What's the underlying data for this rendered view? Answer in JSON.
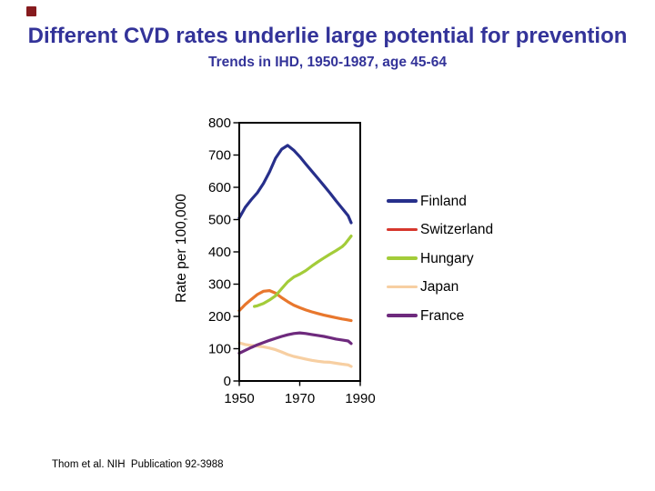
{
  "slide": {
    "title": "Different CVD rates underlie large potential for prevention",
    "subtitle": "Trends in IHD, 1950-1987, age 45-64",
    "footer": "Thom et al. NIH  Publication 92-3988",
    "title_color": "#333399",
    "subtitle_color": "#333399",
    "accent_square_color": "#861b1e"
  },
  "chart_data": {
    "type": "line",
    "title": "",
    "xlabel": "",
    "ylabel": "Rate per 100,000",
    "xlim": [
      1950,
      1990
    ],
    "ylim": [
      0,
      800
    ],
    "xticks": [
      1950,
      1970,
      1990
    ],
    "yticks": [
      0,
      100,
      200,
      300,
      400,
      500,
      600,
      700,
      800
    ],
    "grid": false,
    "legend_position": "right",
    "axis_color": "#000000",
    "series": [
      {
        "name": "Finland",
        "color": "#272f8b",
        "legend_color": "#272f8b",
        "points": [
          [
            1950,
            505
          ],
          [
            1952,
            538
          ],
          [
            1954,
            562
          ],
          [
            1956,
            583
          ],
          [
            1958,
            612
          ],
          [
            1960,
            648
          ],
          [
            1962,
            690
          ],
          [
            1964,
            718
          ],
          [
            1966,
            730
          ],
          [
            1968,
            715
          ],
          [
            1970,
            695
          ],
          [
            1972,
            672
          ],
          [
            1974,
            650
          ],
          [
            1976,
            628
          ],
          [
            1978,
            605
          ],
          [
            1980,
            582
          ],
          [
            1982,
            558
          ],
          [
            1984,
            535
          ],
          [
            1986,
            512
          ],
          [
            1987,
            490
          ]
        ]
      },
      {
        "name": "Switzerland",
        "color": "#e8772d",
        "legend_color": "#d6372d",
        "points": [
          [
            1950,
            218
          ],
          [
            1952,
            237
          ],
          [
            1954,
            253
          ],
          [
            1956,
            268
          ],
          [
            1958,
            278
          ],
          [
            1960,
            280
          ],
          [
            1962,
            272
          ],
          [
            1964,
            258
          ],
          [
            1966,
            246
          ],
          [
            1968,
            235
          ],
          [
            1970,
            227
          ],
          [
            1972,
            220
          ],
          [
            1974,
            214
          ],
          [
            1976,
            209
          ],
          [
            1978,
            204
          ],
          [
            1980,
            200
          ],
          [
            1982,
            196
          ],
          [
            1984,
            192
          ],
          [
            1986,
            189
          ],
          [
            1987,
            187
          ]
        ]
      },
      {
        "name": "Hungary",
        "color": "#a3cc39",
        "legend_color": "#a3cc39",
        "points": [
          [
            1955,
            231
          ],
          [
            1956,
            233
          ],
          [
            1958,
            240
          ],
          [
            1960,
            251
          ],
          [
            1962,
            264
          ],
          [
            1964,
            286
          ],
          [
            1966,
            307
          ],
          [
            1968,
            322
          ],
          [
            1970,
            331
          ],
          [
            1972,
            342
          ],
          [
            1974,
            356
          ],
          [
            1976,
            369
          ],
          [
            1978,
            381
          ],
          [
            1980,
            393
          ],
          [
            1982,
            404
          ],
          [
            1984,
            416
          ],
          [
            1985,
            425
          ],
          [
            1986,
            437
          ],
          [
            1987,
            449
          ]
        ]
      },
      {
        "name": "Japan",
        "color": "#f7cfa2",
        "legend_color": "#f7cfa2",
        "points": [
          [
            1950,
            118
          ],
          [
            1952,
            113
          ],
          [
            1954,
            110
          ],
          [
            1956,
            108
          ],
          [
            1958,
            106
          ],
          [
            1960,
            102
          ],
          [
            1962,
            97
          ],
          [
            1964,
            90
          ],
          [
            1966,
            82
          ],
          [
            1968,
            76
          ],
          [
            1970,
            72
          ],
          [
            1972,
            68
          ],
          [
            1974,
            64
          ],
          [
            1976,
            61
          ],
          [
            1978,
            59
          ],
          [
            1980,
            58
          ],
          [
            1982,
            55
          ],
          [
            1984,
            52
          ],
          [
            1986,
            50
          ],
          [
            1987,
            45
          ]
        ]
      },
      {
        "name": "France",
        "color": "#6e2a7d",
        "legend_color": "#6e2a7d",
        "points": [
          [
            1950,
            86
          ],
          [
            1952,
            95
          ],
          [
            1954,
            104
          ],
          [
            1956,
            112
          ],
          [
            1958,
            119
          ],
          [
            1960,
            126
          ],
          [
            1962,
            132
          ],
          [
            1964,
            138
          ],
          [
            1966,
            143
          ],
          [
            1968,
            147
          ],
          [
            1970,
            149
          ],
          [
            1972,
            147
          ],
          [
            1974,
            144
          ],
          [
            1976,
            141
          ],
          [
            1978,
            138
          ],
          [
            1980,
            134
          ],
          [
            1982,
            130
          ],
          [
            1984,
            127
          ],
          [
            1986,
            124
          ],
          [
            1987,
            116
          ]
        ]
      }
    ]
  }
}
